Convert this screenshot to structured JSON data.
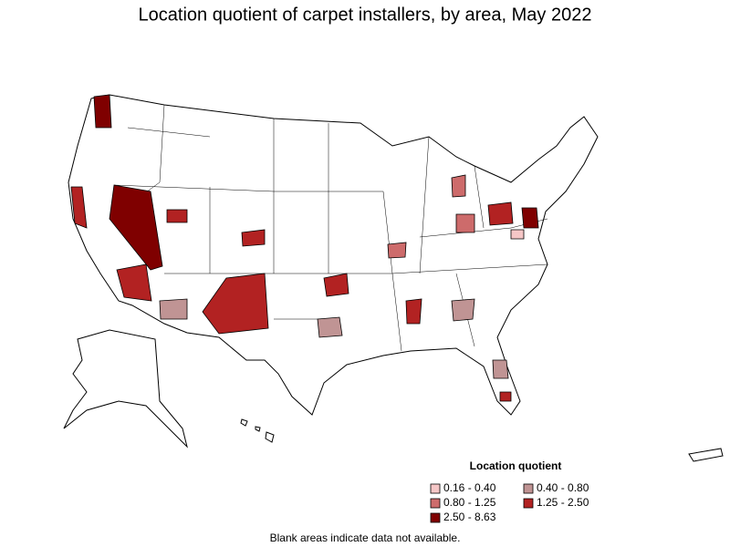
{
  "title": "Location quotient of carpet installers, by area, May 2022",
  "legend": {
    "title": "Location quotient",
    "items": [
      {
        "label": "0.16 - 0.40",
        "color": "#f5c6c6"
      },
      {
        "label": "0.40 - 0.80",
        "color": "#c09494"
      },
      {
        "label": "0.80 - 1.25",
        "color": "#cd6b6b"
      },
      {
        "label": "1.25 - 2.50",
        "color": "#b22222"
      },
      {
        "label": "2.50 - 8.63",
        "color": "#7f0000"
      }
    ]
  },
  "note": "Blank areas indicate data not available."
}
